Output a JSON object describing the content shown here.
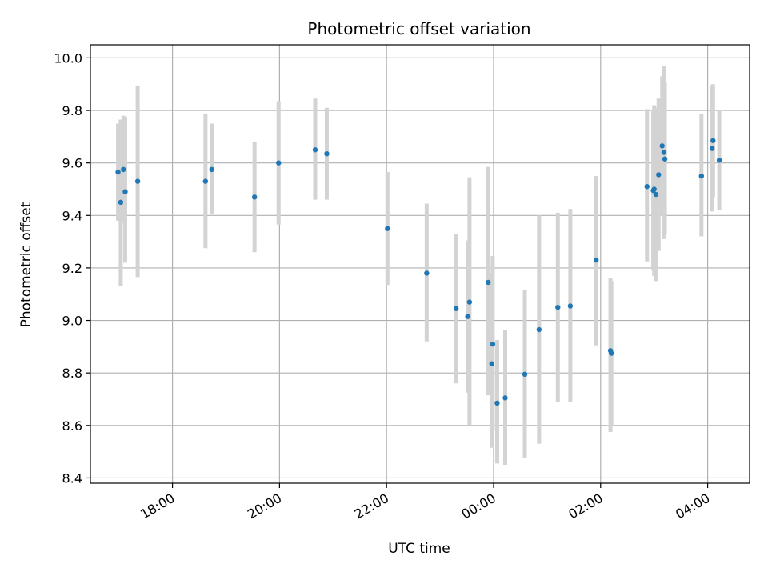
{
  "chart_data": {
    "type": "scatter",
    "title": "Photometric offset variation",
    "xlabel": "UTC time",
    "ylabel": "Photometric offset",
    "x_tick_labels": [
      "18:00",
      "20:00",
      "22:00",
      "00:00",
      "02:00",
      "04:00"
    ],
    "y_tick_labels": [
      "8.4",
      "8.6",
      "8.8",
      "9.0",
      "9.2",
      "9.4",
      "9.6",
      "9.8",
      "10.0"
    ],
    "grid": true,
    "colors": {
      "point": "#1f77b4",
      "errorbar": "#d3d3d3",
      "grid": "#b0b0b0"
    },
    "xlim": [
      "2000-01-01T16:28",
      "2000-01-02T04:47"
    ],
    "ylim": [
      8.38,
      10.05
    ],
    "points": [
      {
        "t": "2000-01-01T16:59",
        "y": 9.565,
        "lo": 9.38,
        "hi": 9.75
      },
      {
        "t": "2000-01-01T17:02",
        "y": 9.45,
        "lo": 9.13,
        "hi": 9.765
      },
      {
        "t": "2000-01-01T17:05",
        "y": 9.575,
        "lo": 9.37,
        "hi": 9.78
      },
      {
        "t": "2000-01-01T17:07",
        "y": 9.49,
        "lo": 9.22,
        "hi": 9.775
      },
      {
        "t": "2000-01-01T17:21",
        "y": 9.53,
        "lo": 9.165,
        "hi": 9.895
      },
      {
        "t": "2000-01-01T18:37",
        "y": 9.53,
        "lo": 9.275,
        "hi": 9.785
      },
      {
        "t": "2000-01-01T18:44",
        "y": 9.575,
        "lo": 9.405,
        "hi": 9.75
      },
      {
        "t": "2000-01-01T19:32",
        "y": 9.47,
        "lo": 9.26,
        "hi": 9.68
      },
      {
        "t": "2000-01-01T19:59",
        "y": 9.6,
        "lo": 9.365,
        "hi": 9.835
      },
      {
        "t": "2000-01-01T20:40",
        "y": 9.65,
        "lo": 9.46,
        "hi": 9.845
      },
      {
        "t": "2000-01-01T20:53",
        "y": 9.635,
        "lo": 9.46,
        "hi": 9.81
      },
      {
        "t": "2000-01-01T22:01",
        "y": 9.35,
        "lo": 9.135,
        "hi": 9.565
      },
      {
        "t": "2000-01-01T22:45",
        "y": 9.18,
        "lo": 8.92,
        "hi": 9.445
      },
      {
        "t": "2000-01-01T23:18",
        "y": 9.045,
        "lo": 8.76,
        "hi": 9.33
      },
      {
        "t": "2000-01-01T23:31",
        "y": 9.015,
        "lo": 8.725,
        "hi": 9.305
      },
      {
        "t": "2000-01-01T23:33",
        "y": 9.07,
        "lo": 8.6,
        "hi": 9.545
      },
      {
        "t": "2000-01-01T23:54",
        "y": 9.145,
        "lo": 8.715,
        "hi": 9.585
      },
      {
        "t": "2000-01-01T23:58",
        "y": 8.835,
        "lo": 8.515,
        "hi": 9.18
      },
      {
        "t": "2000-01-01T23:59",
        "y": 8.91,
        "lo": 8.58,
        "hi": 9.245
      },
      {
        "t": "2000-01-02T00:04",
        "y": 8.685,
        "lo": 8.455,
        "hi": 8.925
      },
      {
        "t": "2000-01-02T00:13",
        "y": 8.705,
        "lo": 8.45,
        "hi": 8.965
      },
      {
        "t": "2000-01-02T00:35",
        "y": 8.795,
        "lo": 8.475,
        "hi": 9.115
      },
      {
        "t": "2000-01-02T00:51",
        "y": 8.965,
        "lo": 8.53,
        "hi": 9.4
      },
      {
        "t": "2000-01-02T01:12",
        "y": 9.05,
        "lo": 8.69,
        "hi": 9.41
      },
      {
        "t": "2000-01-02T01:26",
        "y": 9.055,
        "lo": 8.69,
        "hi": 9.425
      },
      {
        "t": "2000-01-02T01:55",
        "y": 9.23,
        "lo": 8.905,
        "hi": 9.55
      },
      {
        "t": "2000-01-02T02:11",
        "y": 8.885,
        "lo": 8.575,
        "hi": 9.16
      },
      {
        "t": "2000-01-02T02:12",
        "y": 8.875,
        "lo": 8.6,
        "hi": 9.15
      },
      {
        "t": "2000-01-02T02:52",
        "y": 9.51,
        "lo": 9.225,
        "hi": 9.805
      },
      {
        "t": "2000-01-02T02:59",
        "y": 9.495,
        "lo": 9.19,
        "hi": 9.8
      },
      {
        "t": "2000-01-02T03:00",
        "y": 9.5,
        "lo": 9.17,
        "hi": 9.82
      },
      {
        "t": "2000-01-02T03:02",
        "y": 9.48,
        "lo": 9.15,
        "hi": 9.81
      },
      {
        "t": "2000-01-02T03:05",
        "y": 9.555,
        "lo": 9.265,
        "hi": 9.845
      },
      {
        "t": "2000-01-02T03:09",
        "y": 9.665,
        "lo": 9.4,
        "hi": 9.93
      },
      {
        "t": "2000-01-02T03:11",
        "y": 9.64,
        "lo": 9.31,
        "hi": 9.97
      },
      {
        "t": "2000-01-02T03:12",
        "y": 9.615,
        "lo": 9.33,
        "hi": 9.905
      },
      {
        "t": "2000-01-02T03:53",
        "y": 9.55,
        "lo": 9.32,
        "hi": 9.785
      },
      {
        "t": "2000-01-02T04:05",
        "y": 9.655,
        "lo": 9.415,
        "hi": 9.895
      },
      {
        "t": "2000-01-02T04:06",
        "y": 9.685,
        "lo": 9.47,
        "hi": 9.9
      },
      {
        "t": "2000-01-02T04:13",
        "y": 9.61,
        "lo": 9.42,
        "hi": 9.8
      }
    ]
  }
}
